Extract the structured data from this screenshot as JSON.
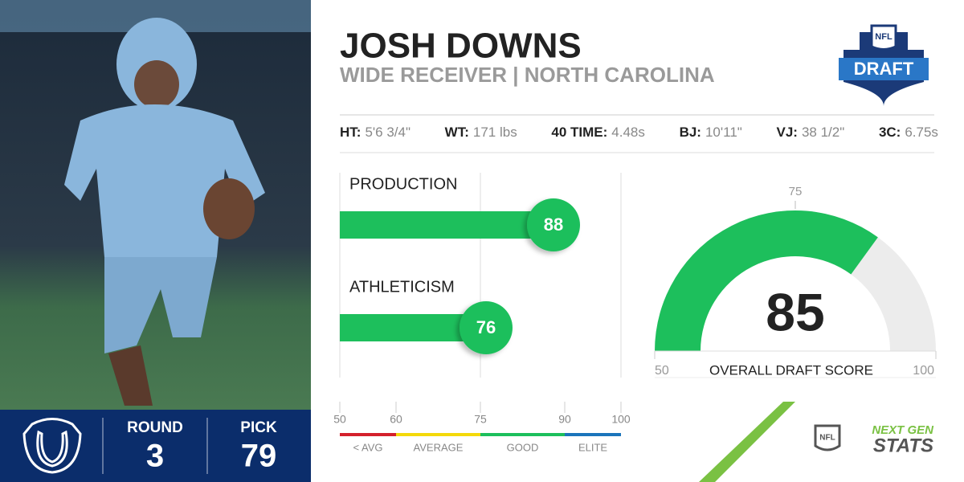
{
  "player": {
    "name": "JOSH DOWNS",
    "position_school": "WIDE RECEIVER | NORTH CAROLINA"
  },
  "measurements": [
    {
      "label": "HT:",
      "value": "5'6 3/4\""
    },
    {
      "label": "WT:",
      "value": "171 lbs"
    },
    {
      "label": "40 TIME:",
      "value": "4.48s"
    },
    {
      "label": "BJ:",
      "value": "10'11\""
    },
    {
      "label": "VJ:",
      "value": "38 1/2\""
    },
    {
      "label": "3C:",
      "value": "6.75s"
    }
  ],
  "draft": {
    "round_label": "ROUND",
    "round": 3,
    "pick_label": "PICK",
    "pick": 79
  },
  "bars": {
    "color": "#1dbf5c",
    "grid_at": 75,
    "items": [
      {
        "name": "PRODUCTION",
        "value": 88
      },
      {
        "name": "ATHLETICISM",
        "value": 76
      }
    ]
  },
  "gauge": {
    "value": 85,
    "label": "OVERALL DRAFT SCORE",
    "min": 50,
    "max": 100,
    "tick": 75,
    "color": "#1dbf5c",
    "track_color": "#ececec"
  },
  "legend": {
    "ticks": [
      50,
      60,
      75,
      90,
      100
    ],
    "bands": [
      {
        "label": "< AVG",
        "color": "#d4202c"
      },
      {
        "label": "AVERAGE",
        "color": "#f4d90a"
      },
      {
        "label": "GOOD",
        "color": "#1dbf5c"
      },
      {
        "label": "ELITE",
        "color": "#1b74bb"
      }
    ]
  },
  "logos": {
    "draft": "DRAFT",
    "nfl": "NFL",
    "ngs_top": "NEXT GEN",
    "ngs_bottom": "STATS"
  }
}
